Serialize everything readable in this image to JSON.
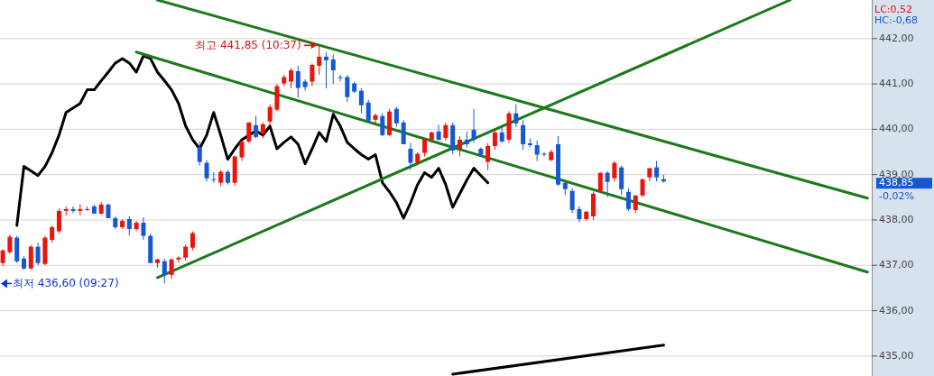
{
  "chart_data": {
    "type": "candlestick",
    "categories": [
      null,
      null,
      null,
      null,
      null,
      null,
      null,
      null,
      null,
      null,
      null,
      null,
      null,
      null,
      null,
      null,
      null,
      null,
      null,
      null,
      null,
      null,
      null,
      null,
      null,
      null,
      null,
      null,
      null,
      null,
      null,
      null,
      null,
      null,
      null,
      null,
      null,
      null,
      null,
      null,
      null,
      null,
      null,
      null,
      null,
      null,
      null,
      null,
      null,
      null,
      null,
      null,
      null,
      null,
      null,
      null,
      null,
      null,
      null,
      null,
      null,
      null,
      null,
      null,
      null,
      null,
      null,
      null,
      null,
      null,
      null,
      null,
      null,
      null,
      null,
      null,
      null,
      null,
      null,
      null,
      null,
      null,
      null,
      null,
      null,
      null,
      null,
      null,
      null,
      null,
      null,
      null,
      null,
      null,
      null,
      null,
      null,
      null,
      null,
      null,
      null,
      null,
      null,
      null,
      null,
      null,
      null,
      null,
      null,
      null,
      null,
      null,
      null,
      null,
      null,
      null,
      null,
      null,
      null,
      null,
      null,
      null,
      null,
      null
    ],
    "ohlc": [
      [
        437.05,
        437.35,
        436.98,
        437.33
      ],
      [
        437.29,
        437.68,
        437.25,
        437.63
      ],
      [
        437.61,
        437.65,
        437.05,
        437.09
      ],
      [
        437.15,
        437.2,
        436.9,
        436.93
      ],
      [
        436.93,
        437.45,
        436.9,
        437.41
      ],
      [
        437.41,
        437.5,
        437.0,
        437.05
      ],
      [
        437.03,
        437.65,
        437.0,
        437.61
      ],
      [
        437.56,
        437.88,
        437.5,
        437.84
      ],
      [
        437.75,
        438.25,
        437.7,
        438.2
      ],
      [
        438.2,
        438.3,
        438.1,
        438.24
      ],
      [
        438.24,
        438.3,
        438.15,
        438.2
      ],
      [
        438.2,
        438.35,
        438.1,
        438.24
      ],
      [
        438.22,
        438.3,
        438.2,
        438.24
      ],
      [
        438.3,
        438.34,
        438.14,
        438.14
      ],
      [
        438.14,
        438.4,
        438.12,
        438.34
      ],
      [
        438.34,
        438.36,
        438.04,
        438.04
      ],
      [
        438.04,
        438.08,
        437.8,
        437.84
      ],
      [
        437.84,
        438.02,
        437.8,
        437.98
      ],
      [
        438.02,
        438.08,
        437.66,
        437.8
      ],
      [
        437.8,
        437.98,
        437.75,
        437.94
      ],
      [
        437.94,
        438.06,
        437.56,
        437.65
      ],
      [
        437.65,
        437.7,
        437.05,
        437.05
      ],
      [
        437.05,
        437.15,
        436.95,
        437.13
      ],
      [
        437.09,
        437.15,
        436.6,
        436.79
      ],
      [
        436.79,
        437.15,
        436.7,
        437.13
      ],
      [
        437.13,
        437.2,
        437.05,
        437.17
      ],
      [
        437.17,
        437.45,
        437.1,
        437.41
      ],
      [
        437.39,
        437.75,
        437.33,
        437.71
      ],
      [
        439.61,
        439.73,
        439.2,
        439.28
      ],
      [
        439.26,
        439.32,
        438.85,
        438.92
      ],
      [
        438.9,
        439.05,
        438.82,
        438.88
      ],
      [
        438.82,
        439.1,
        438.75,
        439.06
      ],
      [
        439.06,
        439.1,
        438.78,
        438.82
      ],
      [
        438.82,
        439.42,
        438.75,
        439.4
      ],
      [
        439.38,
        439.75,
        439.3,
        439.73
      ],
      [
        439.73,
        440.15,
        439.7,
        440.15
      ],
      [
        440.09,
        440.3,
        439.8,
        439.83
      ],
      [
        439.91,
        440.15,
        439.8,
        440.11
      ],
      [
        440.17,
        440.55,
        440.1,
        440.49
      ],
      [
        440.43,
        441.0,
        440.4,
        440.95
      ],
      [
        441.01,
        441.2,
        440.95,
        441.15
      ],
      [
        441.05,
        441.35,
        440.9,
        441.3
      ],
      [
        441.28,
        441.4,
        440.7,
        440.91
      ],
      [
        441.05,
        441.1,
        440.85,
        440.93
      ],
      [
        441.05,
        441.45,
        440.95,
        441.42
      ],
      [
        441.4,
        441.85,
        441.2,
        441.6
      ],
      [
        441.6,
        441.7,
        440.9,
        441.52
      ],
      [
        441.54,
        441.65,
        441.0,
        441.3
      ],
      [
        441.15,
        441.2,
        441.05,
        441.13
      ],
      [
        441.15,
        441.2,
        440.6,
        440.71
      ],
      [
        441.01,
        441.05,
        440.8,
        440.83
      ],
      [
        440.85,
        440.9,
        440.35,
        440.53
      ],
      [
        440.59,
        440.65,
        440.15,
        440.19
      ],
      [
        440.21,
        440.35,
        440.1,
        440.31
      ],
      [
        440.29,
        440.35,
        439.85,
        439.87
      ],
      [
        439.87,
        440.45,
        439.85,
        440.39
      ],
      [
        440.45,
        440.5,
        440.05,
        440.13
      ],
      [
        440.15,
        440.2,
        439.67,
        439.67
      ],
      [
        439.57,
        439.7,
        439.1,
        439.26
      ],
      [
        439.26,
        439.5,
        439.2,
        439.46
      ],
      [
        439.48,
        439.8,
        439.4,
        439.77
      ],
      [
        439.77,
        439.95,
        439.7,
        439.93
      ],
      [
        439.95,
        440.1,
        439.75,
        439.77
      ],
      [
        439.81,
        440.15,
        439.75,
        440.09
      ],
      [
        440.09,
        440.15,
        439.45,
        439.53
      ],
      [
        439.57,
        439.85,
        439.4,
        439.77
      ],
      [
        439.77,
        439.95,
        439.6,
        439.67
      ],
      [
        439.99,
        440.45,
        439.7,
        439.77
      ],
      [
        439.57,
        439.6,
        439.4,
        439.44
      ],
      [
        439.28,
        439.7,
        439.1,
        439.63
      ],
      [
        439.63,
        440.0,
        439.55,
        439.93
      ],
      [
        439.93,
        440.05,
        439.7,
        439.73
      ],
      [
        439.77,
        440.4,
        439.7,
        440.35
      ],
      [
        440.35,
        440.55,
        440.05,
        440.13
      ],
      [
        440.09,
        440.2,
        439.55,
        439.67
      ],
      [
        439.69,
        439.8,
        439.6,
        439.65
      ],
      [
        439.65,
        439.75,
        439.3,
        439.44
      ],
      [
        439.46,
        439.5,
        439.4,
        439.44
      ],
      [
        439.32,
        439.55,
        439.3,
        439.5
      ],
      [
        439.67,
        439.85,
        438.75,
        438.78
      ],
      [
        438.82,
        438.88,
        438.55,
        438.68
      ],
      [
        438.64,
        438.7,
        438.15,
        438.22
      ],
      [
        438.24,
        438.3,
        437.95,
        438.02
      ],
      [
        438.02,
        438.2,
        437.98,
        438.18
      ],
      [
        438.08,
        438.62,
        438.0,
        438.58
      ],
      [
        438.64,
        439.05,
        438.6,
        439.04
      ],
      [
        439.04,
        439.08,
        438.5,
        438.84
      ],
      [
        438.92,
        439.3,
        438.85,
        439.26
      ],
      [
        439.16,
        439.2,
        438.55,
        438.68
      ],
      [
        438.62,
        438.7,
        438.2,
        438.24
      ],
      [
        438.22,
        438.55,
        438.15,
        438.54
      ],
      [
        438.54,
        438.9,
        438.5,
        438.9
      ],
      [
        438.94,
        439.15,
        438.85,
        439.14
      ],
      [
        439.16,
        439.3,
        438.85,
        438.94
      ],
      [
        438.9,
        439.0,
        438.82,
        438.85
      ],
      null,
      null,
      null,
      null,
      null,
      null,
      null,
      null,
      null,
      null,
      null,
      null,
      null,
      null,
      null,
      null,
      null,
      null,
      null,
      null,
      null,
      null,
      null,
      null,
      null,
      null,
      null,
      null,
      null
    ],
    "series": [
      {
        "type": "line",
        "color": "#000000",
        "values": [
          null,
          null,
          437.88,
          439.18,
          439.08,
          438.98,
          439.18,
          439.48,
          439.87,
          440.37,
          440.47,
          440.57,
          440.87,
          440.87,
          441.07,
          441.26,
          441.46,
          441.56,
          441.46,
          441.26,
          441.62,
          441.56,
          441.26,
          441.07,
          440.87,
          440.57,
          440.07,
          439.77,
          439.57,
          439.87,
          440.37,
          439.87,
          439.34,
          439.57,
          439.77,
          439.87,
          439.97,
          439.87,
          440.07,
          439.57,
          439.71,
          439.83,
          439.67,
          439.24,
          439.57,
          439.93,
          439.73,
          440.33,
          440.07,
          439.71,
          439.57,
          439.44,
          439.34,
          439.44,
          438.82,
          438.62,
          438.38,
          438.04,
          438.38,
          438.78,
          439.04,
          438.94,
          439.14,
          438.78,
          438.28,
          438.58,
          438.88,
          439.14,
          438.98,
          438.82,
          null,
          null,
          null,
          null,
          null,
          null,
          null,
          null,
          null,
          null,
          null,
          null,
          null,
          null,
          null,
          null,
          null,
          null,
          null,
          null,
          null,
          null,
          null,
          null,
          null,
          null,
          null,
          null,
          null,
          null,
          null,
          null,
          null,
          null,
          null,
          null,
          null,
          null,
          null,
          null,
          null,
          null,
          null,
          null,
          null,
          null,
          null,
          null,
          null,
          null,
          null,
          null,
          null,
          null
        ]
      },
      {
        "type": "line",
        "color": "#1b7a1b",
        "values": [
          null,
          null,
          null,
          null,
          null,
          null,
          null,
          null,
          null,
          null,
          null,
          null,
          null,
          null,
          null,
          null,
          null,
          null,
          null,
          null,
          null,
          null,
          442.85,
          null,
          null,
          null,
          null,
          null,
          null,
          null,
          null,
          null,
          null,
          null,
          null,
          null,
          null,
          null,
          null,
          null,
          null,
          null,
          null,
          null,
          null,
          null,
          null,
          null,
          null,
          null,
          null,
          null,
          null,
          null,
          null,
          null,
          null,
          null,
          null,
          null,
          null,
          null,
          null,
          null,
          null,
          null,
          null,
          null,
          null,
          null,
          null,
          null,
          null,
          null,
          null,
          null,
          null,
          null,
          null,
          null,
          null,
          null,
          null,
          null,
          null,
          null,
          null,
          null,
          null,
          null,
          null,
          null,
          null,
          null,
          null,
          null,
          null,
          null,
          null,
          null,
          null,
          null,
          null,
          null,
          null,
          null,
          null,
          null,
          null,
          null,
          null,
          null,
          null,
          null,
          null,
          null,
          null,
          null,
          null,
          null,
          null,
          null,
          null,
          438.48
        ]
      },
      {
        "type": "line",
        "color": "#1b7a1b",
        "values": [
          null,
          null,
          null,
          null,
          null,
          null,
          null,
          null,
          null,
          null,
          null,
          null,
          null,
          null,
          null,
          null,
          null,
          null,
          null,
          441.7,
          null,
          null,
          null,
          null,
          null,
          null,
          null,
          null,
          null,
          null,
          null,
          null,
          null,
          null,
          null,
          null,
          null,
          null,
          null,
          null,
          null,
          null,
          null,
          null,
          null,
          null,
          null,
          null,
          null,
          null,
          null,
          null,
          null,
          null,
          null,
          null,
          null,
          null,
          null,
          null,
          null,
          null,
          null,
          null,
          null,
          null,
          null,
          null,
          null,
          null,
          null,
          null,
          null,
          null,
          null,
          null,
          null,
          null,
          null,
          null,
          null,
          null,
          null,
          null,
          null,
          null,
          null,
          null,
          null,
          null,
          null,
          null,
          null,
          null,
          null,
          null,
          null,
          null,
          null,
          null,
          null,
          null,
          null,
          null,
          null,
          null,
          null,
          null,
          null,
          null,
          null,
          null,
          null,
          null,
          null,
          null,
          null,
          null,
          null,
          null,
          null,
          null,
          null,
          436.85
        ]
      },
      {
        "type": "line",
        "color": "#1b7a1b",
        "values": [
          null,
          null,
          null,
          null,
          null,
          null,
          null,
          null,
          null,
          null,
          null,
          null,
          null,
          null,
          null,
          null,
          null,
          null,
          null,
          null,
          null,
          null,
          436.73,
          null,
          null,
          null,
          null,
          null,
          null,
          null,
          null,
          null,
          null,
          null,
          null,
          null,
          null,
          null,
          null,
          null,
          null,
          null,
          null,
          null,
          null,
          null,
          null,
          null,
          null,
          null,
          null,
          null,
          null,
          null,
          null,
          null,
          null,
          null,
          null,
          null,
          null,
          null,
          null,
          null,
          null,
          null,
          null,
          null,
          null,
          null,
          null,
          null,
          null,
          null,
          null,
          null,
          null,
          null,
          null,
          null,
          null,
          null,
          null,
          null,
          null,
          null,
          null,
          null,
          null,
          null,
          null,
          null,
          null,
          null,
          null,
          null,
          null,
          null,
          null,
          null,
          null,
          null,
          null,
          null,
          null,
          null,
          null,
          null,
          null,
          null,
          null,
          null,
          442.85,
          null,
          null,
          null,
          null,
          null,
          null,
          null,
          null,
          null,
          null,
          null
        ]
      },
      {
        "type": "line",
        "color": "#000000",
        "values": [
          null,
          null,
          null,
          null,
          null,
          null,
          null,
          null,
          null,
          null,
          null,
          null,
          null,
          null,
          null,
          null,
          null,
          null,
          null,
          null,
          null,
          null,
          null,
          null,
          null,
          null,
          null,
          null,
          null,
          null,
          null,
          null,
          null,
          null,
          null,
          null,
          null,
          null,
          null,
          null,
          null,
          null,
          null,
          null,
          null,
          null,
          null,
          null,
          null,
          null,
          null,
          null,
          null,
          null,
          null,
          null,
          null,
          null,
          null,
          null,
          null,
          null,
          null,
          null,
          434.6,
          null,
          null,
          null,
          null,
          null,
          null,
          null,
          null,
          null,
          null,
          null,
          null,
          null,
          null,
          null,
          null,
          null,
          null,
          null,
          null,
          null,
          null,
          null,
          null,
          null,
          null,
          null,
          null,
          null,
          435.24,
          null,
          null,
          null,
          null,
          null,
          null,
          null,
          null,
          null,
          null,
          null,
          null,
          null,
          null,
          null,
          null,
          null,
          null,
          null,
          null,
          null,
          null,
          null,
          null,
          null,
          null,
          null,
          null,
          null
        ]
      }
    ],
    "ylim": [
      434.56,
      442.85
    ],
    "yticks": [
      {
        "value": 435,
        "label": "435,00"
      },
      {
        "value": 436,
        "label": "436,00"
      },
      {
        "value": 437,
        "label": "437,00"
      },
      {
        "value": 438,
        "label": "438,00"
      },
      {
        "value": 439,
        "label": "439,00"
      },
      {
        "value": 440,
        "label": "440,00"
      },
      {
        "value": 441,
        "label": "441,00"
      },
      {
        "value": 442,
        "label": "442,00"
      }
    ],
    "grid": "y",
    "annotations": [
      "최고 441,85 (10:37)",
      "최저 436,60 (09:27)",
      "LC:0,52",
      "HC:-0,68",
      "438,85",
      "-0,02%"
    ]
  }
}
